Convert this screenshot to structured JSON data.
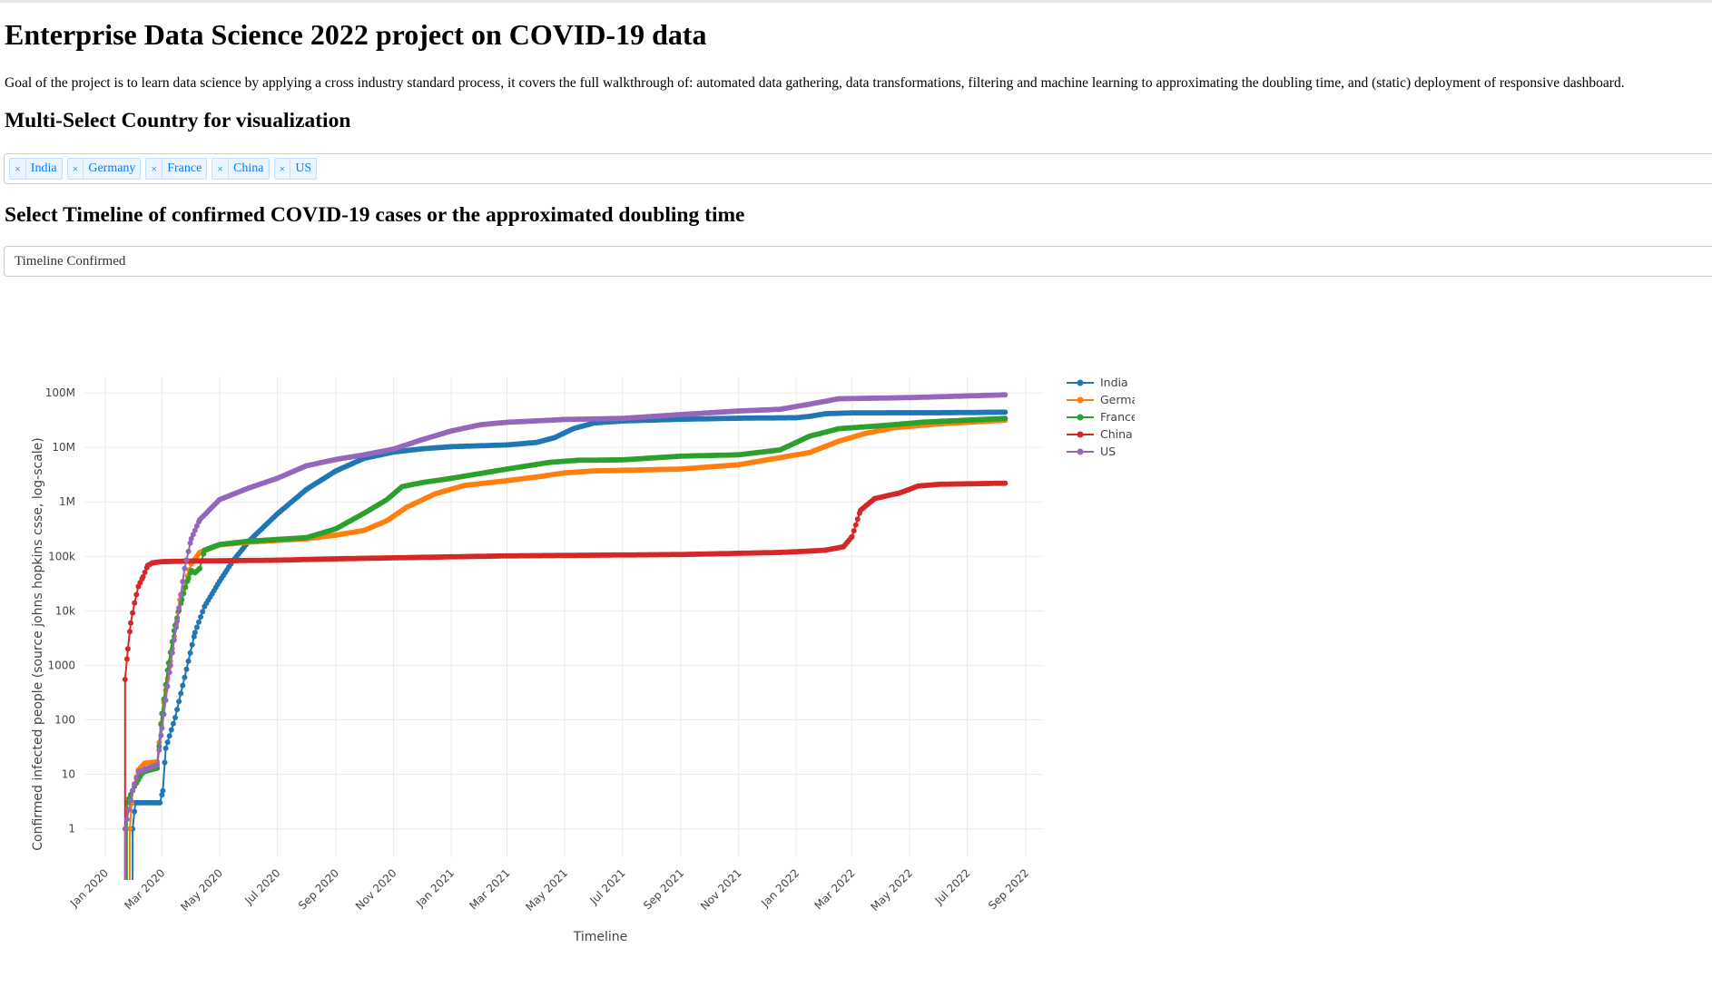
{
  "page": {
    "title": "Enterprise Data Science 2022 project on COVID-19 data",
    "description": "Goal of the project is to learn data science by applying a cross industry standard process, it covers the full walkthrough of: automated data gathering, data transformations, filtering and machine learning to approximating the doubling time, and (static) deployment of responsive dashboard.",
    "country_heading": "Multi-Select Country for visualization",
    "timeline_heading": "Select Timeline of confirmed COVID-19 cases or the approximated doubling time"
  },
  "country_select": {
    "remove_glyph": "×",
    "selected": [
      "India",
      "Germany",
      "France",
      "China",
      "US"
    ]
  },
  "timeline_select": {
    "value": "Timeline Confirmed"
  },
  "chart_data": {
    "type": "line",
    "title": "",
    "xlabel": "Timeline",
    "ylabel": "Confirmed infected people (source johns hopkins csse, log-scale)",
    "y_scale": "log",
    "ylim": [
      0.3,
      200000000
    ],
    "xlim": [
      "2019-12-10",
      "2022-09-20"
    ],
    "grid": true,
    "legend_position": "top-right",
    "x_ticks": [
      {
        "date": "2020-01-01",
        "label": "Jan 2020"
      },
      {
        "date": "2020-03-01",
        "label": "Mar 2020"
      },
      {
        "date": "2020-05-01",
        "label": "May 2020"
      },
      {
        "date": "2020-07-01",
        "label": "Jul 2020"
      },
      {
        "date": "2020-09-01",
        "label": "Sep 2020"
      },
      {
        "date": "2020-11-01",
        "label": "Nov 2020"
      },
      {
        "date": "2021-01-01",
        "label": "Jan 2021"
      },
      {
        "date": "2021-03-01",
        "label": "Mar 2021"
      },
      {
        "date": "2021-05-01",
        "label": "May 2021"
      },
      {
        "date": "2021-07-01",
        "label": "Jul 2021"
      },
      {
        "date": "2021-09-01",
        "label": "Sep 2021"
      },
      {
        "date": "2021-11-01",
        "label": "Nov 2021"
      },
      {
        "date": "2022-01-01",
        "label": "Jan 2022"
      },
      {
        "date": "2022-03-01",
        "label": "Mar 2022"
      },
      {
        "date": "2022-05-01",
        "label": "May 2022"
      },
      {
        "date": "2022-07-01",
        "label": "Jul 2022"
      },
      {
        "date": "2022-09-01",
        "label": "Sep 2022"
      }
    ],
    "y_ticks": [
      {
        "value": 1,
        "label": "1"
      },
      {
        "value": 10,
        "label": "10"
      },
      {
        "value": 100,
        "label": "100"
      },
      {
        "value": 1000,
        "label": "1000"
      },
      {
        "value": 10000,
        "label": "10k"
      },
      {
        "value": 100000,
        "label": "100k"
      },
      {
        "value": 1000000,
        "label": "1M"
      },
      {
        "value": 10000000,
        "label": "10M"
      },
      {
        "value": 100000000,
        "label": "100M"
      }
    ],
    "series": [
      {
        "name": "India",
        "color": "#1f77b4",
        "points": [
          [
            "2020-01-30",
            1
          ],
          [
            "2020-02-02",
            3
          ],
          [
            "2020-02-28",
            3
          ],
          [
            "2020-03-02",
            5
          ],
          [
            "2020-03-05",
            30
          ],
          [
            "2020-03-15",
            110
          ],
          [
            "2020-03-25",
            600
          ],
          [
            "2020-04-05",
            4000
          ],
          [
            "2020-04-15",
            12000
          ],
          [
            "2020-05-01",
            35000
          ],
          [
            "2020-05-15",
            82000
          ],
          [
            "2020-06-01",
            190000
          ],
          [
            "2020-07-01",
            600000
          ],
          [
            "2020-08-01",
            1700000
          ],
          [
            "2020-09-01",
            3700000
          ],
          [
            "2020-10-01",
            6300000
          ],
          [
            "2020-11-01",
            8200000
          ],
          [
            "2020-12-01",
            9400000
          ],
          [
            "2021-01-01",
            10300000
          ],
          [
            "2021-03-01",
            11100000
          ],
          [
            "2021-04-01",
            12300000
          ],
          [
            "2021-04-20",
            15000000
          ],
          [
            "2021-05-10",
            22000000
          ],
          [
            "2021-06-01",
            28000000
          ],
          [
            "2021-07-01",
            30500000
          ],
          [
            "2021-09-01",
            32800000
          ],
          [
            "2021-11-01",
            34300000
          ],
          [
            "2022-01-01",
            35000000
          ],
          [
            "2022-01-15",
            37000000
          ],
          [
            "2022-02-01",
            41500000
          ],
          [
            "2022-03-01",
            43000000
          ],
          [
            "2022-06-01",
            43200000
          ],
          [
            "2022-08-10",
            44200000
          ]
        ]
      },
      {
        "name": "Germany",
        "color": "#ff7f0e",
        "points": [
          [
            "2020-01-27",
            1
          ],
          [
            "2020-01-30",
            5
          ],
          [
            "2020-02-05",
            12
          ],
          [
            "2020-02-12",
            16
          ],
          [
            "2020-02-25",
            17
          ],
          [
            "2020-03-01",
            130
          ],
          [
            "2020-03-10",
            1200
          ],
          [
            "2020-03-20",
            16000
          ],
          [
            "2020-04-01",
            72000
          ],
          [
            "2020-04-10",
            118000
          ],
          [
            "2020-05-01",
            163000
          ],
          [
            "2020-06-01",
            182000
          ],
          [
            "2020-08-01",
            210000
          ],
          [
            "2020-09-01",
            245000
          ],
          [
            "2020-10-01",
            300000
          ],
          [
            "2020-10-25",
            450000
          ],
          [
            "2020-11-15",
            800000
          ],
          [
            "2020-12-15",
            1400000
          ],
          [
            "2021-01-15",
            2000000
          ],
          [
            "2021-03-01",
            2450000
          ],
          [
            "2021-04-01",
            2850000
          ],
          [
            "2021-05-01",
            3400000
          ],
          [
            "2021-06-01",
            3700000
          ],
          [
            "2021-09-01",
            4000000
          ],
          [
            "2021-11-01",
            4800000
          ],
          [
            "2021-12-15",
            6500000
          ],
          [
            "2022-01-15",
            8000000
          ],
          [
            "2022-02-15",
            13000000
          ],
          [
            "2022-03-15",
            18000000
          ],
          [
            "2022-04-15",
            23000000
          ],
          [
            "2022-06-01",
            27000000
          ],
          [
            "2022-08-10",
            31500000
          ]
        ]
      },
      {
        "name": "France",
        "color": "#2ca02c",
        "points": [
          [
            "2020-01-24",
            3
          ],
          [
            "2020-02-01",
            6
          ],
          [
            "2020-02-10",
            11
          ],
          [
            "2020-02-25",
            13
          ],
          [
            "2020-03-01",
            130
          ],
          [
            "2020-03-08",
            1100
          ],
          [
            "2020-03-15",
            5400
          ],
          [
            "2020-03-22",
            16000
          ],
          [
            "2020-03-29",
            40000
          ],
          [
            "2020-04-01",
            55000
          ],
          [
            "2020-04-05",
            50000
          ],
          [
            "2020-04-10",
            60000
          ],
          [
            "2020-04-15",
            130000
          ],
          [
            "2020-05-01",
            165000
          ],
          [
            "2020-06-01",
            190000
          ],
          [
            "2020-08-01",
            220000
          ],
          [
            "2020-09-01",
            320000
          ],
          [
            "2020-10-01",
            620000
          ],
          [
            "2020-10-25",
            1100000
          ],
          [
            "2020-11-10",
            1900000
          ],
          [
            "2020-12-01",
            2250000
          ],
          [
            "2021-01-01",
            2700000
          ],
          [
            "2021-03-01",
            4000000
          ],
          [
            "2021-04-15",
            5300000
          ],
          [
            "2021-05-15",
            5800000
          ],
          [
            "2021-07-01",
            5900000
          ],
          [
            "2021-09-01",
            6900000
          ],
          [
            "2021-11-01",
            7300000
          ],
          [
            "2021-12-15",
            9000000
          ],
          [
            "2022-01-15",
            16000000
          ],
          [
            "2022-02-15",
            22000000
          ],
          [
            "2022-04-01",
            25000000
          ],
          [
            "2022-05-15",
            29000000
          ],
          [
            "2022-08-10",
            34000000
          ]
        ]
      },
      {
        "name": "China",
        "color": "#d62728",
        "points": [
          [
            "2020-01-22",
            550
          ],
          [
            "2020-01-25",
            2000
          ],
          [
            "2020-01-28",
            6000
          ],
          [
            "2020-02-01",
            14000
          ],
          [
            "2020-02-05",
            28000
          ],
          [
            "2020-02-10",
            42000
          ],
          [
            "2020-02-15",
            68000
          ],
          [
            "2020-02-20",
            76000
          ],
          [
            "2020-03-01",
            80000
          ],
          [
            "2020-04-01",
            82000
          ],
          [
            "2020-07-01",
            85000
          ],
          [
            "2020-09-01",
            90000
          ],
          [
            "2021-01-01",
            98000
          ],
          [
            "2021-03-01",
            102000
          ],
          [
            "2021-09-01",
            108000
          ],
          [
            "2021-12-15",
            118000
          ],
          [
            "2022-01-15",
            125000
          ],
          [
            "2022-02-01",
            130000
          ],
          [
            "2022-02-20",
            150000
          ],
          [
            "2022-03-01",
            230000
          ],
          [
            "2022-03-10",
            700000
          ],
          [
            "2022-03-25",
            1150000
          ],
          [
            "2022-04-20",
            1450000
          ],
          [
            "2022-05-10",
            1950000
          ],
          [
            "2022-06-01",
            2100000
          ],
          [
            "2022-08-10",
            2200000
          ]
        ]
      },
      {
        "name": "US",
        "color": "#9467bd",
        "points": [
          [
            "2020-01-22",
            1
          ],
          [
            "2020-01-30",
            5
          ],
          [
            "2020-02-05",
            11
          ],
          [
            "2020-02-25",
            15
          ],
          [
            "2020-03-01",
            70
          ],
          [
            "2020-03-10",
            1000
          ],
          [
            "2020-03-17",
            6500
          ],
          [
            "2020-03-25",
            60000
          ],
          [
            "2020-04-01",
            210000
          ],
          [
            "2020-04-10",
            470000
          ],
          [
            "2020-05-01",
            1100000
          ],
          [
            "2020-06-01",
            1800000
          ],
          [
            "2020-07-01",
            2700000
          ],
          [
            "2020-08-01",
            4600000
          ],
          [
            "2020-09-01",
            6000000
          ],
          [
            "2020-10-01",
            7300000
          ],
          [
            "2020-11-01",
            9300000
          ],
          [
            "2020-12-01",
            13800000
          ],
          [
            "2021-01-01",
            20000000
          ],
          [
            "2021-02-01",
            26000000
          ],
          [
            "2021-03-01",
            28900000
          ],
          [
            "2021-05-01",
            32500000
          ],
          [
            "2021-07-01",
            34000000
          ],
          [
            "2021-09-01",
            40000000
          ],
          [
            "2021-11-01",
            46500000
          ],
          [
            "2021-12-15",
            50000000
          ],
          [
            "2022-01-15",
            62000000
          ],
          [
            "2022-02-15",
            78000000
          ],
          [
            "2022-05-01",
            82000000
          ],
          [
            "2022-08-10",
            92000000
          ]
        ]
      }
    ]
  }
}
